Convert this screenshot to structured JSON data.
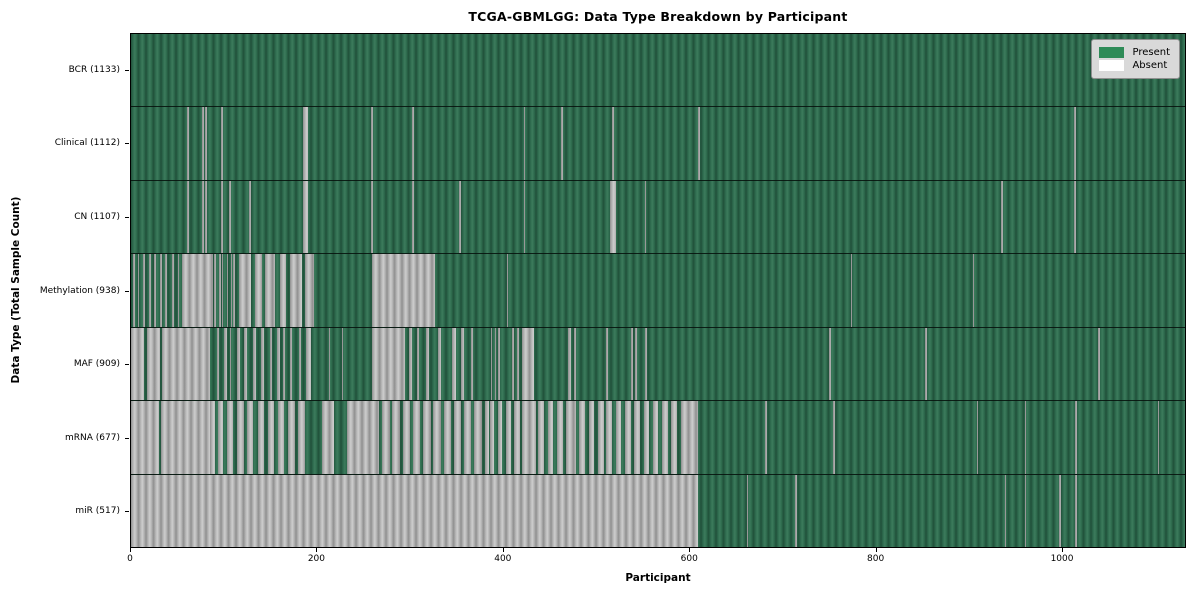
{
  "chart_data": {
    "type": "heatmap",
    "title": "TCGA-GBMLGG: Data Type Breakdown by Participant",
    "xlabel": "Participant",
    "ylabel": "Data Type (Total Sample Count)",
    "x_max": 1133,
    "x_ticks": [
      0,
      200,
      400,
      600,
      800,
      1000
    ],
    "grid": false,
    "legend_position": "upper right",
    "colors": {
      "present": "#2e8b57",
      "absent": "#ffffff",
      "absent_rendered": "#b4b4b4",
      "legend_bg": "#d9d9d9"
    },
    "legend": [
      {
        "label": "Present",
        "color": "#2e8b57"
      },
      {
        "label": "Absent",
        "color": "#ffffff"
      }
    ],
    "rows": [
      {
        "key": "bcr",
        "label": "BCR",
        "total": 1133,
        "tick_label": "BCR (1133)",
        "absent_segments": []
      },
      {
        "key": "clinical",
        "label": "Clinical",
        "total": 1112,
        "tick_label": "Clinical (1112)",
        "absent_segments": [
          [
            60,
            62
          ],
          [
            76,
            78
          ],
          [
            80,
            82
          ],
          [
            97,
            99
          ],
          [
            185,
            190
          ],
          [
            258,
            260
          ],
          [
            302,
            304
          ],
          [
            422,
            424
          ],
          [
            462,
            464
          ],
          [
            517,
            519
          ],
          [
            610,
            612
          ],
          [
            1014,
            1016
          ]
        ]
      },
      {
        "key": "cn",
        "label": "CN",
        "total": 1107,
        "tick_label": "CN (1107)",
        "absent_segments": [
          [
            60,
            62
          ],
          [
            76,
            78
          ],
          [
            80,
            82
          ],
          [
            97,
            99
          ],
          [
            105,
            107
          ],
          [
            127,
            129
          ],
          [
            185,
            190
          ],
          [
            258,
            260
          ],
          [
            302,
            304
          ],
          [
            353,
            355
          ],
          [
            422,
            424
          ],
          [
            515,
            521
          ],
          [
            552,
            554
          ],
          [
            935,
            937
          ],
          [
            1014,
            1016
          ]
        ]
      },
      {
        "key": "methylation",
        "label": "Methylation",
        "total": 938,
        "tick_label": "Methylation (938)",
        "absent_segments": [
          [
            2,
            4
          ],
          [
            7,
            9
          ],
          [
            13,
            15
          ],
          [
            19,
            21
          ],
          [
            25,
            27
          ],
          [
            31,
            33
          ],
          [
            37,
            39
          ],
          [
            44,
            46
          ],
          [
            50,
            52
          ],
          [
            55,
            88
          ],
          [
            89,
            91
          ],
          [
            95,
            96
          ],
          [
            98,
            99
          ],
          [
            103,
            104
          ],
          [
            107,
            108
          ],
          [
            110,
            111
          ],
          [
            116,
            129
          ],
          [
            133,
            141
          ],
          [
            144,
            155
          ],
          [
            160,
            167
          ],
          [
            171,
            184
          ],
          [
            187,
            197
          ],
          [
            259,
            327
          ],
          [
            404,
            405
          ],
          [
            774,
            775
          ],
          [
            905,
            906
          ]
        ]
      },
      {
        "key": "maf",
        "label": "MAF",
        "total": 909,
        "tick_label": "MAF (909)",
        "absent_segments": [
          [
            0,
            14
          ],
          [
            17,
            31
          ],
          [
            33,
            85
          ],
          [
            92,
            95
          ],
          [
            100,
            103
          ],
          [
            106,
            108
          ],
          [
            114,
            117
          ],
          [
            122,
            125
          ],
          [
            131,
            134
          ],
          [
            140,
            143
          ],
          [
            149,
            152
          ],
          [
            157,
            160
          ],
          [
            163,
            166
          ],
          [
            171,
            173
          ],
          [
            181,
            183
          ],
          [
            188,
            193
          ],
          [
            213,
            214
          ],
          [
            227,
            228
          ],
          [
            259,
            295
          ],
          [
            299,
            302
          ],
          [
            307,
            310
          ],
          [
            317,
            320
          ],
          [
            330,
            333
          ],
          [
            345,
            349
          ],
          [
            355,
            358
          ],
          [
            365,
            368
          ],
          [
            387,
            388
          ],
          [
            391,
            392
          ],
          [
            395,
            396
          ],
          [
            410,
            412
          ],
          [
            415,
            417
          ],
          [
            420,
            433
          ],
          [
            470,
            473
          ],
          [
            476,
            478
          ],
          [
            511,
            513
          ],
          [
            538,
            540
          ],
          [
            542,
            544
          ],
          [
            553,
            554
          ],
          [
            750,
            753
          ],
          [
            854,
            855
          ],
          [
            1040,
            1041
          ]
        ]
      },
      {
        "key": "mrna",
        "label": "mRNA",
        "total": 677,
        "tick_label": "mRNA (677)",
        "absent_segments": [
          [
            0,
            30
          ],
          [
            32,
            85
          ],
          [
            85,
            90
          ],
          [
            93,
            99
          ],
          [
            103,
            110
          ],
          [
            114,
            121
          ],
          [
            125,
            131
          ],
          [
            136,
            143
          ],
          [
            147,
            154
          ],
          [
            158,
            165
          ],
          [
            169,
            176
          ],
          [
            180,
            187
          ],
          [
            205,
            218
          ],
          [
            232,
            267
          ],
          [
            270,
            278
          ],
          [
            281,
            289
          ],
          [
            292,
            300
          ],
          [
            303,
            311
          ],
          [
            314,
            322
          ],
          [
            325,
            333
          ],
          [
            336,
            344
          ],
          [
            347,
            355
          ],
          [
            358,
            366
          ],
          [
            369,
            377
          ],
          [
            380,
            385
          ],
          [
            386,
            390
          ],
          [
            394,
            399
          ],
          [
            403,
            408
          ],
          [
            412,
            418
          ],
          [
            420,
            435
          ],
          [
            438,
            444
          ],
          [
            448,
            454
          ],
          [
            458,
            464
          ],
          [
            468,
            478
          ],
          [
            482,
            488
          ],
          [
            492,
            498
          ],
          [
            502,
            508
          ],
          [
            511,
            517
          ],
          [
            521,
            527
          ],
          [
            531,
            537
          ],
          [
            541,
            547
          ],
          [
            551,
            557
          ],
          [
            561,
            567
          ],
          [
            571,
            577
          ],
          [
            581,
            587
          ],
          [
            591,
            610
          ],
          [
            682,
            683
          ],
          [
            755,
            756
          ],
          [
            909,
            910
          ],
          [
            961,
            962
          ],
          [
            1015,
            1016
          ],
          [
            1104,
            1105
          ]
        ]
      },
      {
        "key": "mir",
        "label": "miR",
        "total": 517,
        "tick_label": "miR (517)",
        "absent_segments": [
          [
            0,
            610
          ],
          [
            662,
            663
          ],
          [
            714,
            715
          ],
          [
            939,
            940
          ],
          [
            961,
            962
          ],
          [
            998,
            999
          ],
          [
            1015,
            1017
          ]
        ]
      }
    ]
  }
}
